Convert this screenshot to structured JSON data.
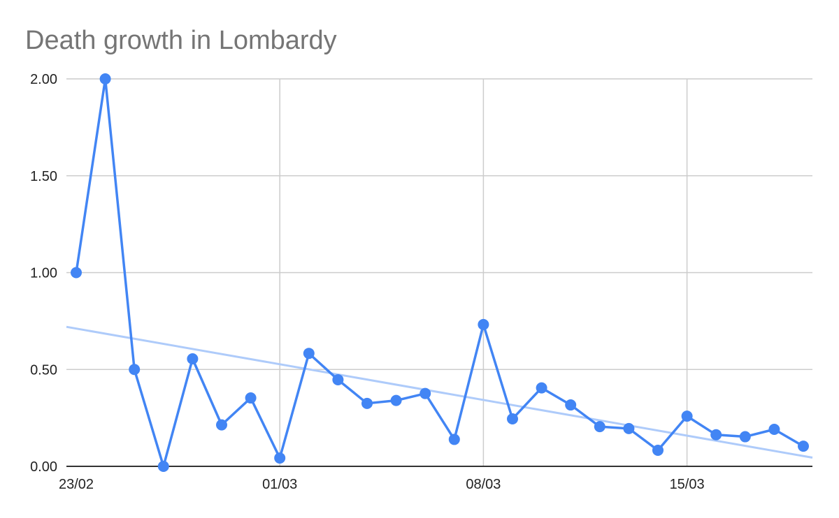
{
  "chart_data": {
    "type": "line",
    "title": "Death growth in Lombardy",
    "xlabel": "",
    "ylabel": "",
    "x_tick_labels": [
      "23/02",
      "01/03",
      "08/03",
      "15/03"
    ],
    "x_tick_index": [
      0,
      7,
      14,
      21
    ],
    "y_tick_labels": [
      "0.00",
      "0.50",
      "1.00",
      "1.50",
      "2.00"
    ],
    "ylim": [
      0,
      2
    ],
    "grid": true,
    "legend": "none",
    "colors": {
      "series": "#4285f4",
      "trendline": "#aecbfa"
    },
    "series": [
      {
        "values": [
          1.0,
          2.0,
          0.5,
          0.0,
          0.555,
          0.214,
          0.353,
          0.043,
          0.583,
          0.447,
          0.325,
          0.34,
          0.376,
          0.139,
          0.732,
          0.245,
          0.405,
          0.317,
          0.205,
          0.195,
          0.083,
          0.259,
          0.163,
          0.153,
          0.191,
          0.104
        ]
      }
    ],
    "trendline": {
      "type": "linear",
      "start": 0.72,
      "end": 0.045
    }
  }
}
